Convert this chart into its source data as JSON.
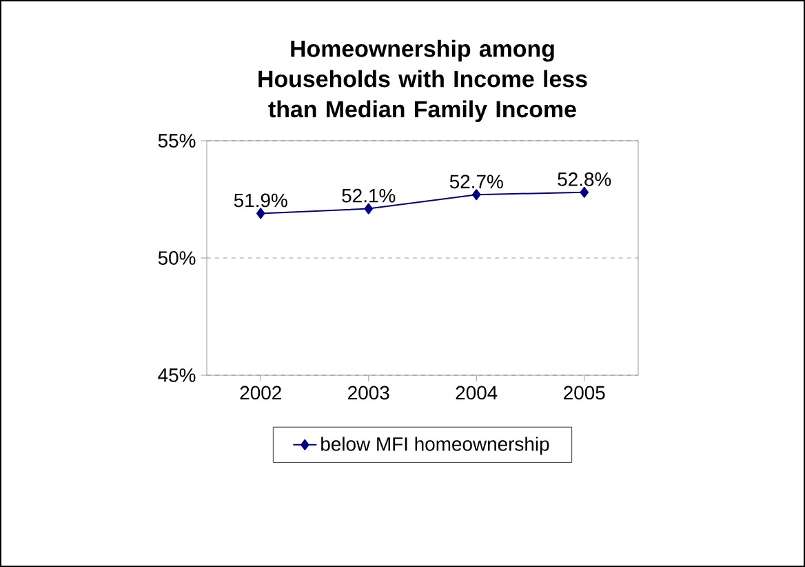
{
  "chart_data": {
    "type": "line",
    "title": "Homeownership among Households with Income less than Median Family Income",
    "categories": [
      "2002",
      "2003",
      "2004",
      "2005"
    ],
    "series": [
      {
        "name": "below MFI homeownership",
        "color": "#000080",
        "values": [
          51.9,
          52.1,
          52.7,
          52.8
        ],
        "value_labels": [
          "51.9%",
          "52.1%",
          "52.7%",
          "52.8%"
        ]
      }
    ],
    "ylim": [
      45,
      55
    ],
    "yticks": [
      {
        "value": 45,
        "label": "45%"
      },
      {
        "value": 50,
        "label": "50%"
      },
      {
        "value": 55,
        "label": "55%"
      }
    ],
    "grid": "y",
    "legend": "bottom",
    "marker": "diamond",
    "line_style": "solid"
  }
}
